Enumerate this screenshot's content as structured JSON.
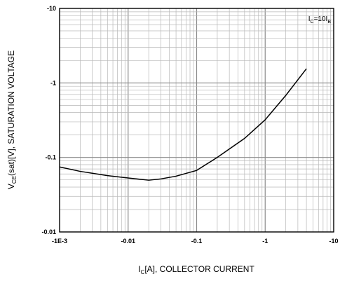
{
  "chart_data": {
    "type": "line",
    "x_scale": "log",
    "y_scale": "log",
    "xlim": [
      -0.001,
      -10
    ],
    "ylim": [
      -0.01,
      -10
    ],
    "grid": true,
    "x_tick_labels": [
      "-1E-3",
      "-0.01",
      "-0.1",
      "-1",
      "-10"
    ],
    "x_tick_values": [
      -0.001,
      -0.01,
      -0.1,
      -1,
      -10
    ],
    "y_tick_labels": [
      "-10",
      "-1",
      "-0.1",
      "-0.01"
    ],
    "y_tick_values": [
      -10,
      -1,
      -0.1,
      -0.01
    ],
    "xlabel": {
      "pre": "I",
      "sub": "C",
      "post": "[A], COLLECTOR CURRENT"
    },
    "ylabel": {
      "pre": "V",
      "sub": "CE",
      "post": "(sat)[V], SATURATION VOLTAGE"
    },
    "annotation": {
      "a": "I",
      "a_sub": "C",
      "mid": "=10I",
      "b_sub": "B"
    },
    "series": [
      {
        "x": [
          -0.001,
          -0.002,
          -0.005,
          -0.01,
          -0.02,
          -0.03,
          -0.05,
          -0.1,
          -0.2,
          -0.5,
          -1,
          -2,
          -4
        ],
        "y": [
          -0.0745,
          -0.065,
          -0.057,
          -0.053,
          -0.0495,
          -0.0515,
          -0.056,
          -0.067,
          -0.1,
          -0.18,
          -0.32,
          -0.68,
          -1.55
        ]
      }
    ]
  }
}
